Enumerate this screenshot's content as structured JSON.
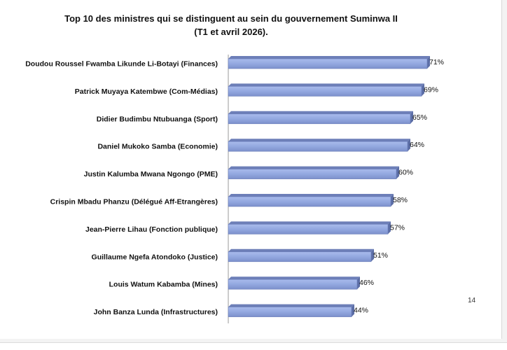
{
  "slide": {
    "page_number": "14"
  },
  "chart_data": {
    "type": "bar",
    "orientation": "horizontal",
    "title": "Top 10 des ministres qui se distinguent  au sein du gouvernement Suminwa II",
    "subtitle": "(T1 et avril 2026).",
    "categories": [
      "Doudou Roussel Fwamba Likunde Li-Botayi (Finances)",
      "Patrick Muyaya Katembwe (Com-Médias)",
      "Didier Budimbu Ntubuanga (Sport)",
      "Daniel Mukoko Samba (Economie)",
      "Justin Kalumba Mwana Ngongo (PME)",
      "Crispin Mbadu Phanzu (Délégué Aff-Etrangères)",
      "Jean-Pierre Lihau (Fonction publique)",
      "Guillaume Ngefa Atondoko (Justice)",
      "Louis Watum Kabamba (Mines)",
      "John Banza Lunda (Infrastructures)"
    ],
    "values": [
      71,
      69,
      65,
      64,
      60,
      58,
      57,
      51,
      46,
      44
    ],
    "data_labels": [
      "71%",
      "69%",
      "65%",
      "64%",
      "60%",
      "58%",
      "57%",
      "51%",
      "46%",
      "44%"
    ],
    "unit": "%",
    "xlim": [
      0,
      100
    ],
    "bar_style": "3d",
    "bar_color": "#8da2dc",
    "grid": false,
    "legend": "none"
  }
}
